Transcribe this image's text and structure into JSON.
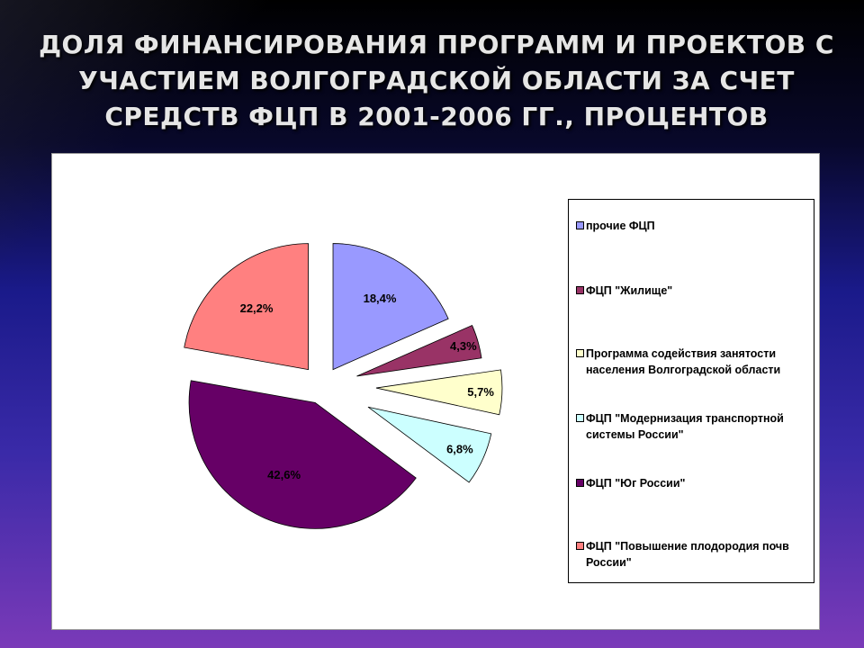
{
  "slide": {
    "title": "ДОЛЯ ФИНАНСИРОВАНИЯ ПРОГРАММ И ПРОЕКТОВ С УЧАСТИЕМ ВОЛГОГРАДСКОЙ ОБЛАСТИ ЗА СЧЕТ СРЕДСТВ ФЦП  В 2001-2006 ГГ., ПРОЦЕНТОВ"
  },
  "chart_data": {
    "type": "pie",
    "title": "ДОЛЯ ФИНАНСИРОВАНИЯ ПРОГРАММ И ПРОЕКТОВ С УЧАСТИЕМ ВОЛГОГРАДСКОЙ ОБЛАСТИ ЗА СЧЕТ СРЕДСТВ ФЦП  В 2001-2006 ГГ., ПРОЦЕНТОВ",
    "legend_position": "right",
    "exploded": true,
    "slices": [
      {
        "name": "прочие ФЦП",
        "value": 18.4,
        "label": "18,4%",
        "color": "#9999ff"
      },
      {
        "name": "ФЦП \"Жилище\"",
        "value": 4.3,
        "label": "4,3%",
        "color": "#993366"
      },
      {
        "name": "Программа содействия занятости населения Волгоградской области",
        "value": 5.7,
        "label": "5,7%",
        "color": "#ffffcc"
      },
      {
        "name": "ФЦП \"Модернизация транспортной системы России\"",
        "value": 6.8,
        "label": "6,8%",
        "color": "#ccffff"
      },
      {
        "name": "ФЦП \"Юг России\"",
        "value": 42.6,
        "label": "42,6%",
        "color": "#660066"
      },
      {
        "name": "ФЦП \"Повышение плодородия почв России\"",
        "value": 22.2,
        "label": "22,2%",
        "color": "#ff8080"
      }
    ]
  }
}
